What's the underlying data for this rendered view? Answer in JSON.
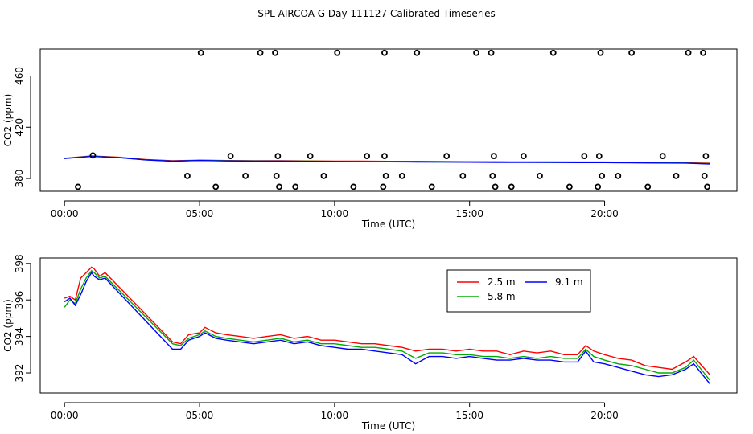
{
  "title": "SPL AIRCOA G  Day 111127  Calibrated Timeseries",
  "chart_data": [
    {
      "type": "line",
      "panel": "top",
      "xlabel": "Time (UTC)",
      "ylabel": "CO2 (ppm)",
      "xlim": [
        -0.9,
        24.9
      ],
      "ylim": [
        370,
        481
      ],
      "xticks": [
        0,
        5,
        10,
        15,
        20
      ],
      "xtick_labels": [
        "00:00",
        "05:00",
        "10:00",
        "15:00",
        "20:00"
      ],
      "yticks": [
        380,
        420,
        460
      ],
      "ytick_labels": [
        "380",
        "420",
        "460"
      ],
      "series": [
        {
          "name": "2.5 m",
          "color": "#ff0000",
          "x": [
            0,
            1,
            2,
            3,
            4,
            5,
            6,
            7,
            8,
            9,
            10,
            11,
            12,
            13,
            14,
            15,
            16,
            17,
            18,
            19,
            20,
            21,
            22,
            23,
            23.9
          ],
          "values": [
            395.8,
            397.6,
            396.6,
            394.8,
            393.8,
            394.3,
            394.0,
            393.9,
            393.9,
            393.7,
            393.6,
            393.5,
            393.4,
            393.4,
            393.2,
            393.1,
            393.0,
            392.9,
            392.9,
            392.8,
            392.8,
            392.6,
            392.4,
            392.3,
            391.9
          ]
        },
        {
          "name": "5.8 m",
          "color": "#00aa00",
          "x": [
            0,
            1,
            2,
            3,
            4,
            5,
            6,
            7,
            8,
            9,
            10,
            11,
            12,
            13,
            14,
            15,
            16,
            17,
            18,
            19,
            20,
            21,
            22,
            23,
            23.9
          ],
          "values": [
            395.7,
            397.4,
            396.4,
            394.6,
            393.6,
            394.2,
            393.8,
            393.7,
            393.6,
            393.5,
            393.4,
            393.2,
            393.1,
            393.0,
            392.9,
            392.8,
            392.8,
            392.7,
            392.6,
            392.5,
            392.5,
            392.4,
            392.2,
            392.1,
            391.6
          ]
        },
        {
          "name": "9.1 m",
          "color": "#0000ff",
          "x": [
            0,
            1,
            2,
            3,
            4,
            5,
            6,
            7,
            8,
            9,
            10,
            11,
            12,
            13,
            14,
            15,
            16,
            17,
            18,
            19,
            20,
            21,
            22,
            23,
            23.9
          ],
          "values": [
            395.6,
            397.3,
            396.3,
            394.5,
            393.5,
            394.1,
            393.7,
            393.6,
            393.5,
            393.4,
            393.3,
            393.1,
            393.0,
            392.9,
            392.8,
            392.7,
            392.6,
            392.6,
            392.5,
            392.4,
            392.4,
            392.2,
            392.1,
            392.0,
            391.3
          ]
        }
      ],
      "outlier_points": [
        {
          "x": 5.05,
          "y": 478
        },
        {
          "x": 7.25,
          "y": 478
        },
        {
          "x": 7.8,
          "y": 478
        },
        {
          "x": 10.1,
          "y": 478
        },
        {
          "x": 11.85,
          "y": 478
        },
        {
          "x": 13.05,
          "y": 478
        },
        {
          "x": 15.25,
          "y": 478
        },
        {
          "x": 15.8,
          "y": 478
        },
        {
          "x": 18.1,
          "y": 478
        },
        {
          "x": 19.85,
          "y": 478
        },
        {
          "x": 21.0,
          "y": 478
        },
        {
          "x": 23.1,
          "y": 478
        },
        {
          "x": 23.65,
          "y": 478
        },
        {
          "x": 1.05,
          "y": 398
        },
        {
          "x": 6.15,
          "y": 397.5
        },
        {
          "x": 7.9,
          "y": 397.5
        },
        {
          "x": 9.1,
          "y": 397.5
        },
        {
          "x": 11.2,
          "y": 397.5
        },
        {
          "x": 11.85,
          "y": 397.5
        },
        {
          "x": 14.15,
          "y": 397.5
        },
        {
          "x": 15.9,
          "y": 397.5
        },
        {
          "x": 17.0,
          "y": 397.5
        },
        {
          "x": 19.25,
          "y": 397.5
        },
        {
          "x": 19.8,
          "y": 397.5
        },
        {
          "x": 22.15,
          "y": 397.5
        },
        {
          "x": 23.75,
          "y": 397.5
        },
        {
          "x": 4.55,
          "y": 382
        },
        {
          "x": 6.7,
          "y": 382
        },
        {
          "x": 7.85,
          "y": 382
        },
        {
          "x": 9.6,
          "y": 382
        },
        {
          "x": 11.9,
          "y": 382
        },
        {
          "x": 12.5,
          "y": 382
        },
        {
          "x": 14.75,
          "y": 382
        },
        {
          "x": 15.85,
          "y": 382
        },
        {
          "x": 17.6,
          "y": 382
        },
        {
          "x": 19.9,
          "y": 382
        },
        {
          "x": 20.5,
          "y": 382
        },
        {
          "x": 22.65,
          "y": 382
        },
        {
          "x": 23.7,
          "y": 382
        },
        {
          "x": 0.5,
          "y": 373.5
        },
        {
          "x": 5.6,
          "y": 373.5
        },
        {
          "x": 7.95,
          "y": 373.5
        },
        {
          "x": 8.55,
          "y": 373.5
        },
        {
          "x": 10.7,
          "y": 373.5
        },
        {
          "x": 11.8,
          "y": 373.5
        },
        {
          "x": 13.6,
          "y": 373.5
        },
        {
          "x": 15.95,
          "y": 373.5
        },
        {
          "x": 16.55,
          "y": 373.5
        },
        {
          "x": 18.7,
          "y": 373.5
        },
        {
          "x": 19.75,
          "y": 373.5
        },
        {
          "x": 21.6,
          "y": 373.5
        },
        {
          "x": 23.8,
          "y": 373.5
        }
      ]
    },
    {
      "type": "line",
      "panel": "bottom",
      "xlabel": "Time (UTC)",
      "ylabel": "CO2 (ppm)",
      "xlim": [
        -0.9,
        24.9
      ],
      "ylim": [
        390.9,
        398.3
      ],
      "xticks": [
        0,
        5,
        10,
        15,
        20
      ],
      "xtick_labels": [
        "00:00",
        "05:00",
        "10:00",
        "15:00",
        "20:00"
      ],
      "yticks": [
        392,
        394,
        396,
        398
      ],
      "ytick_labels": [
        "392",
        "394",
        "396",
        "398"
      ],
      "legend": {
        "position": "top-right",
        "entries": [
          "2.5 m",
          "9.1 m",
          "5.8 m"
        ]
      },
      "series": [
        {
          "name": "2.5 m",
          "color": "#ff0000",
          "x": [
            0,
            0.2,
            0.4,
            0.6,
            0.8,
            1.0,
            1.1,
            1.3,
            1.5,
            4.0,
            4.3,
            4.6,
            5.0,
            5.2,
            5.6,
            6.0,
            6.5,
            7.0,
            7.5,
            8.0,
            8.5,
            9.0,
            9.5,
            10.0,
            10.5,
            11.0,
            11.5,
            12.0,
            12.5,
            13.0,
            13.5,
            14.0,
            14.5,
            15.0,
            15.5,
            16.0,
            16.5,
            17.0,
            17.5,
            18.0,
            18.5,
            19.0,
            19.3,
            19.6,
            20.0,
            20.5,
            21.0,
            21.5,
            22.0,
            22.5,
            23.0,
            23.3,
            23.9
          ],
          "values": [
            396.1,
            396.2,
            396.0,
            397.2,
            397.5,
            397.8,
            397.7,
            397.3,
            397.5,
            393.7,
            393.6,
            394.1,
            394.2,
            394.5,
            394.2,
            394.1,
            394.0,
            393.9,
            394.0,
            394.1,
            393.9,
            394.0,
            393.8,
            393.8,
            393.7,
            393.6,
            393.6,
            393.5,
            393.4,
            393.2,
            393.3,
            393.3,
            393.2,
            393.3,
            393.2,
            393.2,
            393.0,
            393.2,
            393.1,
            393.2,
            393.0,
            393.0,
            393.5,
            393.2,
            393.0,
            392.8,
            392.7,
            392.4,
            392.3,
            392.2,
            392.6,
            392.9,
            391.9
          ]
        },
        {
          "name": "5.8 m",
          "color": "#00aa00",
          "x": [
            0,
            0.2,
            0.4,
            0.6,
            0.8,
            1.0,
            1.1,
            1.3,
            1.5,
            4.0,
            4.3,
            4.6,
            5.0,
            5.2,
            5.6,
            6.0,
            6.5,
            7.0,
            7.5,
            8.0,
            8.5,
            9.0,
            9.5,
            10.0,
            10.5,
            11.0,
            11.5,
            12.0,
            12.5,
            13.0,
            13.5,
            14.0,
            14.5,
            15.0,
            15.5,
            16.0,
            16.5,
            17.0,
            17.5,
            18.0,
            18.5,
            19.0,
            19.3,
            19.6,
            20.0,
            20.5,
            21.0,
            21.5,
            22.0,
            22.5,
            23.0,
            23.3,
            23.9
          ],
          "values": [
            395.6,
            396.0,
            395.8,
            396.6,
            397.2,
            397.6,
            397.5,
            397.2,
            397.3,
            393.6,
            393.5,
            393.9,
            394.1,
            394.3,
            394.0,
            393.9,
            393.8,
            393.7,
            393.8,
            393.9,
            393.7,
            393.8,
            393.6,
            393.6,
            393.5,
            393.4,
            393.4,
            393.3,
            393.2,
            392.8,
            393.1,
            393.1,
            393.0,
            393.0,
            392.9,
            392.9,
            392.8,
            392.9,
            392.8,
            392.9,
            392.8,
            392.8,
            393.3,
            392.9,
            392.7,
            392.5,
            392.4,
            392.2,
            392.0,
            392.0,
            392.3,
            392.7,
            391.6
          ]
        },
        {
          "name": "9.1 m",
          "color": "#0000ff",
          "x": [
            0,
            0.2,
            0.4,
            0.6,
            0.8,
            1.0,
            1.1,
            1.3,
            1.5,
            4.0,
            4.3,
            4.6,
            5.0,
            5.2,
            5.6,
            6.0,
            6.5,
            7.0,
            7.5,
            8.0,
            8.5,
            9.0,
            9.5,
            10.0,
            10.5,
            11.0,
            11.5,
            12.0,
            12.5,
            13.0,
            13.5,
            14.0,
            14.5,
            15.0,
            15.5,
            16.0,
            16.5,
            17.0,
            17.5,
            18.0,
            18.5,
            19.0,
            19.3,
            19.6,
            20.0,
            20.5,
            21.0,
            21.5,
            22.0,
            22.5,
            23.0,
            23.3,
            23.9
          ],
          "values": [
            395.9,
            396.1,
            395.7,
            396.3,
            397.0,
            397.5,
            397.3,
            397.1,
            397.2,
            393.3,
            393.3,
            393.8,
            394.0,
            394.2,
            393.9,
            393.8,
            393.7,
            393.6,
            393.7,
            393.8,
            393.6,
            393.7,
            393.5,
            393.4,
            393.3,
            393.3,
            393.2,
            393.1,
            393.0,
            392.5,
            392.9,
            392.9,
            392.8,
            392.9,
            392.8,
            392.7,
            392.7,
            392.8,
            392.7,
            392.7,
            392.6,
            392.6,
            393.2,
            392.6,
            392.5,
            392.3,
            392.1,
            391.9,
            391.8,
            391.9,
            392.2,
            392.5,
            391.4
          ]
        }
      ]
    }
  ]
}
